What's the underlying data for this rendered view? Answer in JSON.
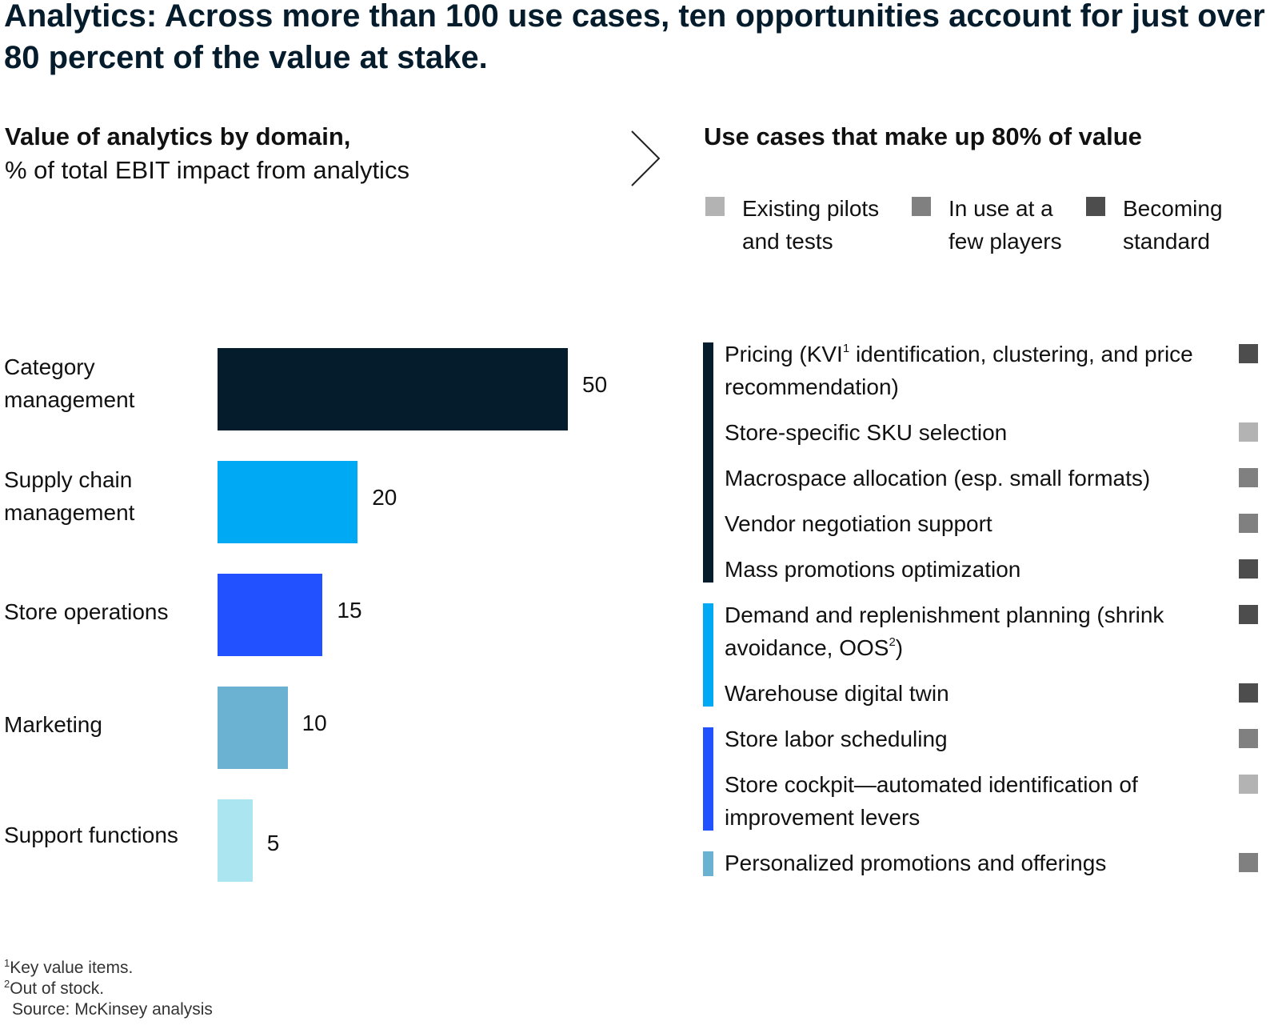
{
  "title": "Analytics: Across more than 100 use cases, ten opportunities account for just over 80 percent of the value at stake.",
  "left_heading": {
    "bold": "Value of analytics by domain,",
    "subtitle": "% of total EBIT impact from analytics"
  },
  "right_heading": "Use cases that make up 80% of value",
  "legend": [
    {
      "label": "Existing pilots and tests",
      "color": "#b3b3b3"
    },
    {
      "label": "In use at a few players",
      "color": "#808080"
    },
    {
      "label": "Becoming standard",
      "color": "#4d4d4d"
    }
  ],
  "chart_data": {
    "type": "bar",
    "orientation": "horizontal",
    "title": "Value of analytics by domain,",
    "subtitle": "% of total EBIT impact from analytics",
    "categories": [
      "Category management",
      "Supply chain management",
      "Store operations",
      "Marketing",
      "Support functions"
    ],
    "values": [
      50,
      20,
      15,
      10,
      5
    ],
    "colors": [
      "#051c2c",
      "#00a9f4",
      "#2251ff",
      "#6bb1d1",
      "#abe5f0"
    ],
    "xlim": [
      0,
      50
    ],
    "grid": false
  },
  "use_cases": [
    {
      "text": "Pricing (KVI",
      "sup": "1",
      "text_after": " identification, clustering, and price recommendation)",
      "domain_index": 0,
      "status": "Becoming standard"
    },
    {
      "text": "Store-specific SKU selection",
      "domain_index": 0,
      "status": "Existing pilots and tests"
    },
    {
      "text": "Macrospace allocation (esp. small formats)",
      "domain_index": 0,
      "status": "In use at a few players"
    },
    {
      "text": "Vendor negotiation support",
      "domain_index": 0,
      "status": "In use at a few players"
    },
    {
      "text": "Mass promotions optimization",
      "domain_index": 0,
      "status": "Becoming standard"
    },
    {
      "text": "Demand and replenishment planning (shrink avoidance, OOS",
      "sup": "2",
      "text_after": ")",
      "domain_index": 1,
      "status": "Becoming standard"
    },
    {
      "text": "Warehouse digital twin",
      "domain_index": 1,
      "status": "Becoming standard"
    },
    {
      "text": "Store labor scheduling",
      "domain_index": 2,
      "status": "In use at a few players"
    },
    {
      "text": "Store cockpit—automated identification of improvement levers",
      "domain_index": 2,
      "status": "Existing pilots and tests"
    },
    {
      "text": "Personalized promotions and offerings",
      "domain_index": 3,
      "status": "In use at a few players"
    }
  ],
  "footnotes": [
    {
      "sup": "1",
      "text": "Key value items."
    },
    {
      "sup": "2",
      "text": "Out of stock."
    },
    {
      "sup": "",
      "text": "Source: McKinsey analysis"
    }
  ]
}
